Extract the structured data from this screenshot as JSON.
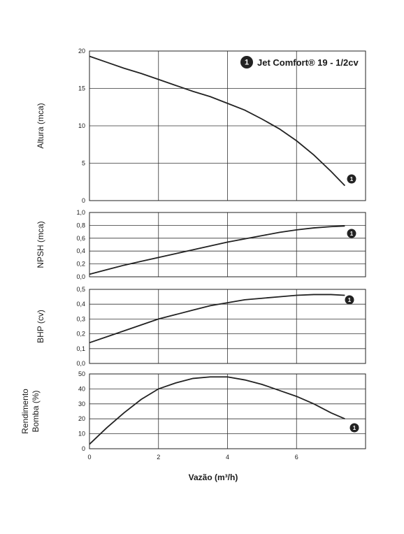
{
  "chart_data": {
    "type": "line",
    "legend": {
      "marker": "1",
      "label": "Jet Comfort® 19 - 1/2cv",
      "placement": "top-right"
    },
    "xlabel": "Vazão (m³/h)",
    "xlim": [
      0,
      8
    ],
    "x_ticks": [
      "0",
      "2",
      "4",
      "6"
    ],
    "panels": [
      {
        "id": "altura",
        "ylabel": "Altura (mca)",
        "ylim": [
          0,
          20
        ],
        "y_ticks": [
          "0",
          "5",
          "10",
          "15",
          "20"
        ],
        "series": [
          {
            "marker": "1",
            "x": [
              0,
              0.5,
              1,
              1.5,
              2,
              2.5,
              3,
              3.5,
              4,
              4.5,
              5,
              5.5,
              6,
              6.5,
              7,
              7.4
            ],
            "y": [
              19.3,
              18.5,
              17.7,
              17.0,
              16.2,
              15.4,
              14.6,
              13.9,
              13.0,
              12.1,
              10.9,
              9.6,
              8.0,
              6.1,
              3.9,
              2.0
            ]
          }
        ]
      },
      {
        "id": "npsh",
        "ylabel": "NPSH (mca)",
        "ylim": [
          0,
          1.0
        ],
        "y_ticks": [
          "0,0",
          "0,2",
          "0,4",
          "0,6",
          "0,8",
          "1,0"
        ],
        "series": [
          {
            "marker": "1",
            "x": [
              0,
              0.5,
              1,
              1.5,
              2,
              2.5,
              3,
              3.5,
              4,
              4.5,
              5,
              5.5,
              6,
              6.5,
              7,
              7.4
            ],
            "y": [
              0.04,
              0.11,
              0.18,
              0.24,
              0.3,
              0.36,
              0.42,
              0.48,
              0.54,
              0.59,
              0.64,
              0.69,
              0.73,
              0.76,
              0.78,
              0.79
            ]
          }
        ]
      },
      {
        "id": "bhp",
        "ylabel": "BHP (cv)",
        "ylim": [
          0,
          0.5
        ],
        "y_ticks": [
          "0,0",
          "0,1",
          "0,2",
          "0,3",
          "0,4",
          "0,5"
        ],
        "series": [
          {
            "marker": "1",
            "x": [
              0,
              0.5,
              1,
              1.5,
              2,
              2.5,
              3,
              3.5,
              4,
              4.5,
              5,
              5.5,
              6,
              6.5,
              7,
              7.4
            ],
            "y": [
              0.14,
              0.18,
              0.22,
              0.26,
              0.3,
              0.33,
              0.36,
              0.39,
              0.41,
              0.43,
              0.44,
              0.45,
              0.46,
              0.465,
              0.465,
              0.46
            ]
          }
        ]
      },
      {
        "id": "rendimento",
        "ylabel": "Rendimento Bomba (%)",
        "ylabel_lines": [
          "Rendimento",
          "Bomba (%)"
        ],
        "ylim": [
          0,
          50
        ],
        "y_ticks": [
          "0",
          "10",
          "20",
          "30",
          "40",
          "50"
        ],
        "series": [
          {
            "marker": "1",
            "x": [
              0,
              0.5,
              1,
              1.5,
              2,
              2.5,
              3,
              3.5,
              4,
              4.5,
              5,
              5.5,
              6,
              6.5,
              7,
              7.4
            ],
            "y": [
              3,
              14,
              24,
              33,
              40,
              44,
              47,
              48,
              48,
              46,
              43,
              39,
              35,
              30,
              24,
              20
            ]
          }
        ]
      }
    ],
    "grid": true
  }
}
